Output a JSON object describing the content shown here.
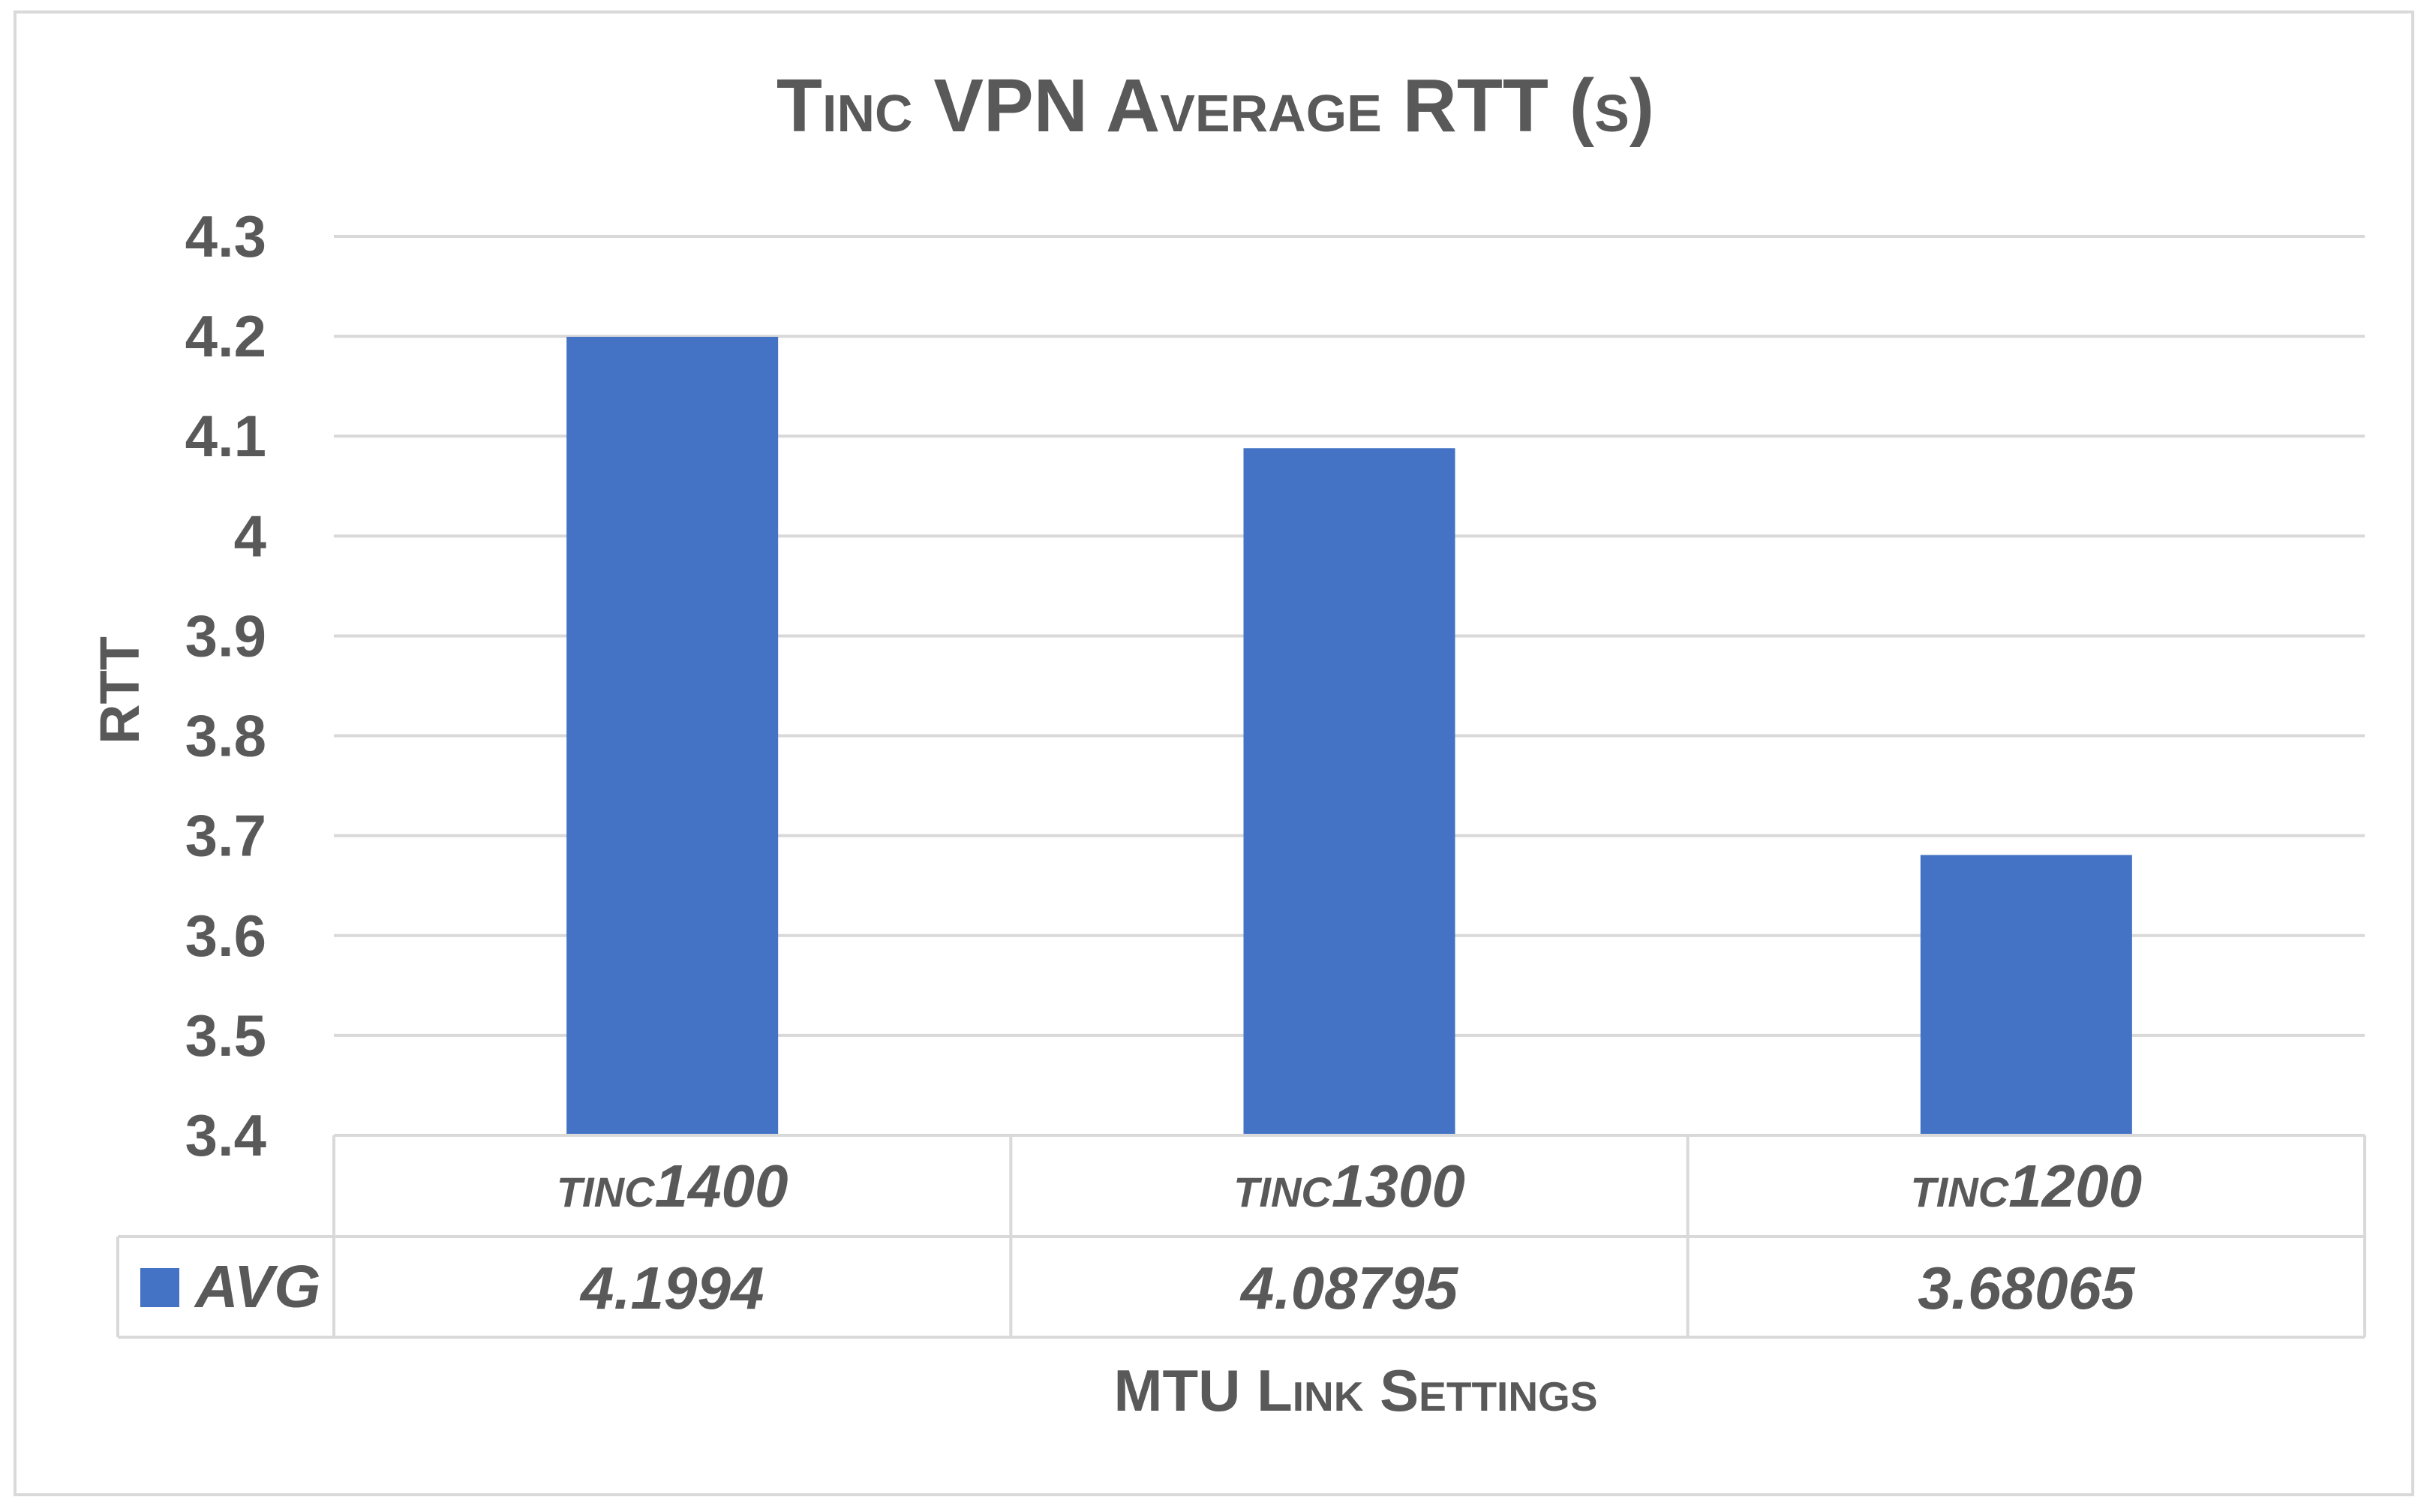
{
  "chart_data": {
    "type": "bar",
    "title": "Tinc VPN Average RTT (s)",
    "xlabel": "MTU Link Settings",
    "ylabel": "RTT",
    "categories": [
      "tinc1400",
      "tinc1300",
      "tinc1200"
    ],
    "series": [
      {
        "name": "AVG",
        "values": [
          4.1994,
          4.08795,
          3.68065
        ],
        "color": "#4472c4"
      }
    ],
    "value_labels": [
      "4.1994",
      "4.08795",
      "3.68065"
    ],
    "ylim": [
      3.4,
      4.3
    ],
    "yticks": [
      3.4,
      3.5,
      3.6,
      3.7,
      3.8,
      3.9,
      4,
      4.1,
      4.2,
      4.3
    ],
    "ytick_labels": [
      "3.4",
      "3.5",
      "3.6",
      "3.7",
      "3.8",
      "3.9",
      "4",
      "4.1",
      "4.2",
      "4.3"
    ],
    "grid": true,
    "legend": "data-table",
    "gridline_color": "#d9d9d9",
    "text_color": "#595959"
  }
}
